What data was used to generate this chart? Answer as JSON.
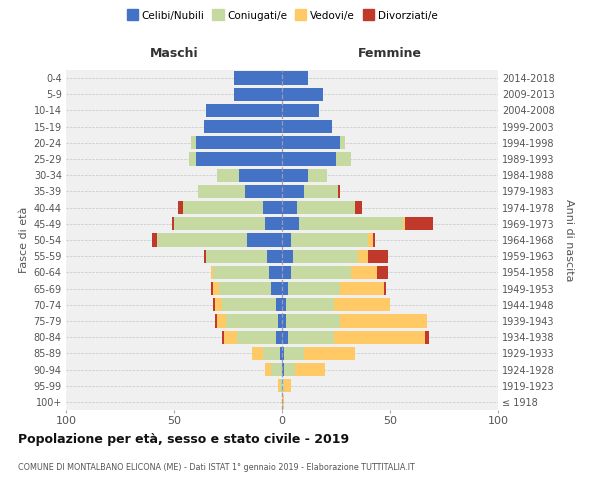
{
  "age_groups": [
    "100+",
    "95-99",
    "90-94",
    "85-89",
    "80-84",
    "75-79",
    "70-74",
    "65-69",
    "60-64",
    "55-59",
    "50-54",
    "45-49",
    "40-44",
    "35-39",
    "30-34",
    "25-29",
    "20-24",
    "15-19",
    "10-14",
    "5-9",
    "0-4"
  ],
  "birth_years": [
    "≤ 1918",
    "1919-1923",
    "1924-1928",
    "1929-1933",
    "1934-1938",
    "1939-1943",
    "1944-1948",
    "1949-1953",
    "1954-1958",
    "1959-1963",
    "1964-1968",
    "1969-1973",
    "1974-1978",
    "1979-1983",
    "1984-1988",
    "1989-1993",
    "1994-1998",
    "1999-2003",
    "2004-2008",
    "2009-2013",
    "2014-2018"
  ],
  "colors": {
    "celibi": "#4472c4",
    "coniugati": "#c5d9a0",
    "vedovi": "#ffc966",
    "divorziati": "#c0392b",
    "background": "#f0f0f0",
    "grid": "#cccccc"
  },
  "maschi": {
    "celibi": [
      0,
      0,
      0,
      1,
      3,
      2,
      3,
      5,
      6,
      7,
      16,
      8,
      9,
      17,
      20,
      40,
      40,
      36,
      35,
      22,
      22
    ],
    "coniugati": [
      0,
      1,
      5,
      8,
      18,
      24,
      25,
      24,
      26,
      28,
      42,
      42,
      37,
      22,
      10,
      3,
      2,
      0,
      0,
      0,
      0
    ],
    "vedovi": [
      0,
      1,
      3,
      5,
      6,
      4,
      3,
      3,
      1,
      0,
      0,
      0,
      0,
      0,
      0,
      0,
      0,
      0,
      0,
      0,
      0
    ],
    "divorziati": [
      0,
      0,
      0,
      0,
      1,
      1,
      1,
      1,
      0,
      1,
      2,
      1,
      2,
      0,
      0,
      0,
      0,
      0,
      0,
      0,
      0
    ]
  },
  "femmine": {
    "celibi": [
      0,
      0,
      1,
      1,
      3,
      2,
      2,
      3,
      4,
      5,
      4,
      8,
      7,
      10,
      12,
      25,
      27,
      23,
      17,
      19,
      12
    ],
    "coniugati": [
      0,
      1,
      5,
      9,
      21,
      25,
      22,
      24,
      28,
      30,
      36,
      48,
      27,
      16,
      9,
      7,
      2,
      0,
      0,
      0,
      0
    ],
    "vedovi": [
      1,
      3,
      14,
      24,
      42,
      40,
      26,
      20,
      12,
      5,
      2,
      1,
      0,
      0,
      0,
      0,
      0,
      0,
      0,
      0,
      0
    ],
    "divorziati": [
      0,
      0,
      0,
      0,
      2,
      0,
      0,
      1,
      5,
      9,
      1,
      13,
      3,
      1,
      0,
      0,
      0,
      0,
      0,
      0,
      0
    ]
  },
  "xlim": 100,
  "title": "Popolazione per età, sesso e stato civile - 2019",
  "subtitle": "COMUNE DI MONTALBANO ELICONA (ME) - Dati ISTAT 1° gennaio 2019 - Elaborazione TUTTITALIA.IT",
  "ylabel_left": "Fasce di età",
  "ylabel_right": "Anni di nascita",
  "maschi_label": "Maschi",
  "femmine_label": "Femmine",
  "legend_labels": [
    "Celibi/Nubili",
    "Coniugati/e",
    "Vedovi/e",
    "Divorziati/e"
  ]
}
